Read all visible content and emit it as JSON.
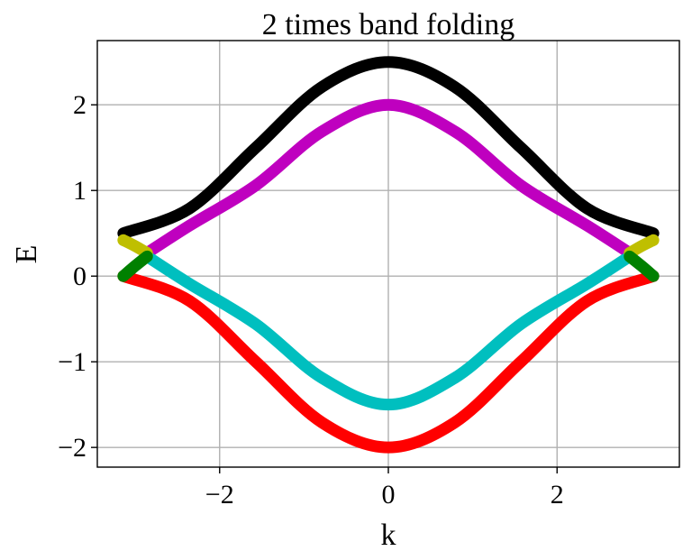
{
  "chart_data": {
    "type": "line",
    "title": "2 times band folding",
    "xlabel": "k",
    "ylabel": "E",
    "xlim": [
      -3.45,
      3.45
    ],
    "ylim": [
      -2.23,
      2.75
    ],
    "xticks": [
      -2,
      0,
      2
    ],
    "yticks": [
      -2,
      -1,
      0,
      1,
      2
    ],
    "xtick_labels": [
      "−2",
      "0",
      "2"
    ],
    "ytick_labels": [
      "−2",
      "−1",
      "0",
      "1",
      "2"
    ],
    "grid": true,
    "series": [
      {
        "color": "#000000",
        "x": [
          -3.1416,
          -2.3562,
          -1.5708,
          -0.7854,
          0,
          0.7854,
          1.5708,
          2.3562,
          3.1416
        ],
        "y": [
          0.5,
          0.79,
          1.5,
          2.21,
          2.5,
          2.21,
          1.5,
          0.79,
          0.5
        ]
      },
      {
        "color": "#bf00bf",
        "x": [
          -2.86,
          -2.3562,
          -1.5708,
          -0.7854,
          0,
          0.7854,
          1.5708,
          2.3562,
          2.86
        ],
        "y": [
          0.27,
          0.59,
          1.06,
          1.69,
          2.0,
          1.69,
          1.06,
          0.59,
          0.27
        ]
      },
      {
        "color": "#00bfbf",
        "x": [
          -2.86,
          -2.3562,
          -1.5708,
          -0.7854,
          0,
          0.7854,
          1.5708,
          2.3562,
          2.86
        ],
        "y": [
          0.23,
          -0.09,
          -0.56,
          -1.19,
          -1.5,
          -1.19,
          -0.56,
          -0.09,
          0.23
        ]
      },
      {
        "color": "#ff0000",
        "x": [
          -3.1416,
          -2.3562,
          -1.5708,
          -0.7854,
          0,
          0.7854,
          1.5708,
          2.3562,
          3.1416
        ],
        "y": [
          0.0,
          -0.29,
          -1.0,
          -1.71,
          -2.0,
          -1.71,
          -1.0,
          -0.29,
          0.0
        ]
      },
      {
        "color": "#bfbf00",
        "x": [
          -3.1416,
          -3.0,
          -2.86
        ],
        "y": [
          0.42,
          0.35,
          0.27
        ]
      },
      {
        "color": "#bfbf00",
        "x": [
          2.86,
          3.0,
          3.1416
        ],
        "y": [
          0.27,
          0.35,
          0.42
        ]
      },
      {
        "color": "#008000",
        "x": [
          -3.1416,
          -3.0,
          -2.86
        ],
        "y": [
          0.0,
          0.12,
          0.23
        ]
      },
      {
        "color": "#008000",
        "x": [
          2.86,
          3.0,
          3.1416
        ],
        "y": [
          0.23,
          0.12,
          0.0
        ]
      }
    ]
  }
}
